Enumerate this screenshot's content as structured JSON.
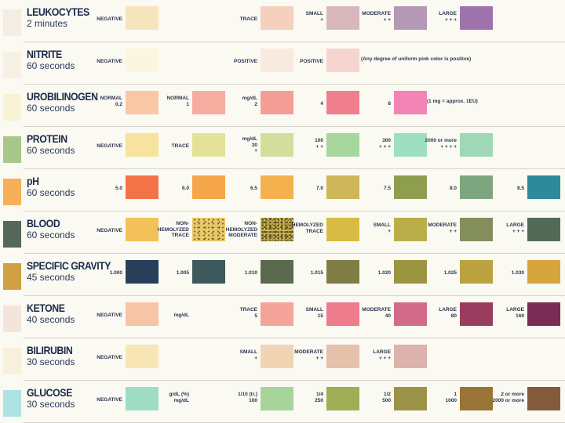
{
  "rows": [
    {
      "name": "LEUKOCYTES",
      "time": "2 minutes",
      "ref_color": "#f3ede2",
      "labels": [
        {
          "text": "NEGATIVE",
          "col": 0
        },
        {
          "text": "TRACE",
          "col": 2
        },
        {
          "text": "SMALL\n+",
          "col": 3
        },
        {
          "text": "MODERATE\n+ +",
          "col": 4
        },
        {
          "text": "LARGE\n+ + +",
          "col": 5
        }
      ],
      "swatches": [
        {
          "col": 0,
          "color": "#f6e4bd"
        },
        {
          "col": 2,
          "color": "#f4d0bd"
        },
        {
          "col": 3,
          "color": "#dab7bc"
        },
        {
          "col": 4,
          "color": "#b598b5"
        },
        {
          "col": 5,
          "color": "#9e73ad"
        }
      ]
    },
    {
      "name": "NITRITE",
      "time": "60 seconds",
      "ref_color": "#f6f1e3",
      "labels": [
        {
          "text": "NEGATIVE",
          "col": 0
        },
        {
          "text": "POSITIVE",
          "col": 2
        },
        {
          "text": "POSITIVE",
          "col": 3
        },
        {
          "text": "(Any degree of uniform pink color is positive)",
          "col": 4,
          "left": true
        }
      ],
      "swatches": [
        {
          "col": 0,
          "color": "#fbf6de"
        },
        {
          "col": 2,
          "color": "#f8eadc"
        },
        {
          "col": 3,
          "color": "#f6d5d0"
        }
      ]
    },
    {
      "name": "UROBILINOGEN",
      "time": "60 seconds",
      "ref_color": "#f9f3d5",
      "labels": [
        {
          "text": "NORMAL\n0.2",
          "col": 0
        },
        {
          "text": "NORMAL\n1",
          "col": 1
        },
        {
          "text": "mg/dL\n2",
          "col": 2
        },
        {
          "text": "4",
          "col": 3
        },
        {
          "text": "8",
          "col": 4
        },
        {
          "text": "(1 mg = approx. 1EU)",
          "col": 5,
          "left": true
        }
      ],
      "swatches": [
        {
          "col": 0,
          "color": "#f8c8a4"
        },
        {
          "col": 1,
          "color": "#f6ad9f"
        },
        {
          "col": 2,
          "color": "#f49e97"
        },
        {
          "col": 3,
          "color": "#ef7f8e"
        },
        {
          "col": 4,
          "color": "#f285b5"
        }
      ]
    },
    {
      "name": "PROTEIN",
      "time": "60 seconds",
      "ref_color": "#a9c78a",
      "labels": [
        {
          "text": "NEGATIVE",
          "col": 0
        },
        {
          "text": "TRACE",
          "col": 1
        },
        {
          "text": "mg/dL\n30\n+",
          "col": 2
        },
        {
          "text": "100\n+ +",
          "col": 3
        },
        {
          "text": "300\n+ + +",
          "col": 4
        },
        {
          "text": "2000 or more\n+ + + +",
          "col": 5
        }
      ],
      "swatches": [
        {
          "col": 0,
          "color": "#f7e39e"
        },
        {
          "col": 1,
          "color": "#e4e199"
        },
        {
          "col": 2,
          "color": "#d2df9c"
        },
        {
          "col": 3,
          "color": "#a7d69e"
        },
        {
          "col": 4,
          "color": "#9fdfc1"
        },
        {
          "col": 5,
          "color": "#9fd8b7"
        }
      ]
    },
    {
      "name": "pH",
      "time": "60 seconds",
      "ref_color": "#f6b058",
      "labels": [
        {
          "text": "5.0",
          "col": 0
        },
        {
          "text": "6.0",
          "col": 1
        },
        {
          "text": "6.5",
          "col": 2
        },
        {
          "text": "7.0",
          "col": 3
        },
        {
          "text": "7.5",
          "col": 4
        },
        {
          "text": "8.0",
          "col": 5
        },
        {
          "text": "8.5",
          "col": 6
        }
      ],
      "swatches": [
        {
          "col": 0,
          "color": "#f37247"
        },
        {
          "col": 1,
          "color": "#f5a54a"
        },
        {
          "col": 2,
          "color": "#f4b14e"
        },
        {
          "col": 3,
          "color": "#cfb65a"
        },
        {
          "col": 4,
          "color": "#8e9e4e"
        },
        {
          "col": 5,
          "color": "#7da680"
        },
        {
          "col": 6,
          "color": "#2e8a9a"
        }
      ]
    },
    {
      "name": "BLOOD",
      "time": "60 seconds",
      "ref_color": "#55695b",
      "labels": [
        {
          "text": "NEGATIVE",
          "col": 0
        },
        {
          "text": "NON-\nHEMOLYZED\nTRACE",
          "col": 1
        },
        {
          "text": "NON-\nHEMOLYZED\nMODERATE",
          "col": 2
        },
        {
          "text": "HEMOLYZED\nTRACE",
          "col": 3
        },
        {
          "text": "SMALL\n+",
          "col": 4
        },
        {
          "text": "MODERATE\n+ +",
          "col": 5
        },
        {
          "text": "LARGE\n+ + +",
          "col": 6
        }
      ],
      "swatches": [
        {
          "col": 0,
          "color": "#f3c15a",
          "pattern": ""
        },
        {
          "col": 1,
          "color": "#e9c867",
          "pattern": "speckle"
        },
        {
          "col": 2,
          "color": "#cdb356",
          "pattern": "speckle2"
        },
        {
          "col": 3,
          "color": "#d6bc45",
          "pattern": ""
        },
        {
          "col": 4,
          "color": "#b9ae4a",
          "pattern": ""
        },
        {
          "col": 5,
          "color": "#848e5c",
          "pattern": ""
        },
        {
          "col": 6,
          "color": "#536a58",
          "pattern": ""
        }
      ]
    },
    {
      "name": "SPECIFIC GRAVITY",
      "time": "45 seconds",
      "ref_color": "#cfa140",
      "labels": [
        {
          "text": "1.000",
          "col": 0
        },
        {
          "text": "1.005",
          "col": 1
        },
        {
          "text": "1.010",
          "col": 2
        },
        {
          "text": "1.015",
          "col": 3
        },
        {
          "text": "1.020",
          "col": 4
        },
        {
          "text": "1.025",
          "col": 5
        },
        {
          "text": "1.030",
          "col": 6
        }
      ],
      "swatches": [
        {
          "col": 0,
          "color": "#283f5c"
        },
        {
          "col": 1,
          "color": "#3c5a5b"
        },
        {
          "col": 2,
          "color": "#596a4e"
        },
        {
          "col": 3,
          "color": "#7f7c46"
        },
        {
          "col": 4,
          "color": "#9b9540"
        },
        {
          "col": 5,
          "color": "#bba23f"
        },
        {
          "col": 6,
          "color": "#d6a63c"
        }
      ]
    },
    {
      "name": "KETONE",
      "time": "40 seconds",
      "ref_color": "#f5e4da",
      "labels": [
        {
          "text": "NEGATIVE",
          "col": 0
        },
        {
          "text": "mg/dL",
          "col": 1
        },
        {
          "text": "TRACE\n5",
          "col": 2
        },
        {
          "text": "SMALL\n15",
          "col": 3
        },
        {
          "text": "MODERATE\n40",
          "col": 4
        },
        {
          "text": "LARGE\n80",
          "col": 5
        },
        {
          "text": "LARGE\n160",
          "col": 6
        }
      ],
      "swatches": [
        {
          "col": 0,
          "color": "#f8c4a6"
        },
        {
          "col": 2,
          "color": "#f4a49b"
        },
        {
          "col": 3,
          "color": "#ee7c8d"
        },
        {
          "col": 4,
          "color": "#d36b8a"
        },
        {
          "col": 5,
          "color": "#9a3c5e"
        },
        {
          "col": 6,
          "color": "#7a2c54"
        }
      ]
    },
    {
      "name": "BILIRUBIN",
      "time": "30 seconds",
      "ref_color": "#f8efdd",
      "labels": [
        {
          "text": "NEGATIVE",
          "col": 0
        },
        {
          "text": "SMALL\n+",
          "col": 2
        },
        {
          "text": "MODERATE\n+ +",
          "col": 3
        },
        {
          "text": "LARGE\n+ + +",
          "col": 4
        }
      ],
      "swatches": [
        {
          "col": 0,
          "color": "#f7e5b6"
        },
        {
          "col": 2,
          "color": "#f1d4b4"
        },
        {
          "col": 3,
          "color": "#e5c0ab"
        },
        {
          "col": 4,
          "color": "#dcb2ac"
        }
      ]
    },
    {
      "name": "GLUCOSE",
      "time": "30 seconds",
      "ref_color": "#aee3e6",
      "labels": [
        {
          "text": "NEGATIVE",
          "col": 0
        },
        {
          "text": "g/dL (%)\nmg/dL",
          "col": 1
        },
        {
          "text": "1/10 (tr.)\n100",
          "col": 2
        },
        {
          "text": "1/4\n250",
          "col": 3
        },
        {
          "text": "1/2\n500",
          "col": 4
        },
        {
          "text": "1\n1000",
          "col": 5
        },
        {
          "text": "2 or more\n2000 or more",
          "col": 6
        }
      ],
      "swatches": [
        {
          "col": 0,
          "color": "#9fdcc4"
        },
        {
          "col": 2,
          "color": "#a7d49a"
        },
        {
          "col": 3,
          "color": "#9fad55"
        },
        {
          "col": 4,
          "color": "#9b9348"
        },
        {
          "col": 5,
          "color": "#9a7337"
        },
        {
          "col": 6,
          "color": "#845a3c"
        }
      ]
    }
  ]
}
